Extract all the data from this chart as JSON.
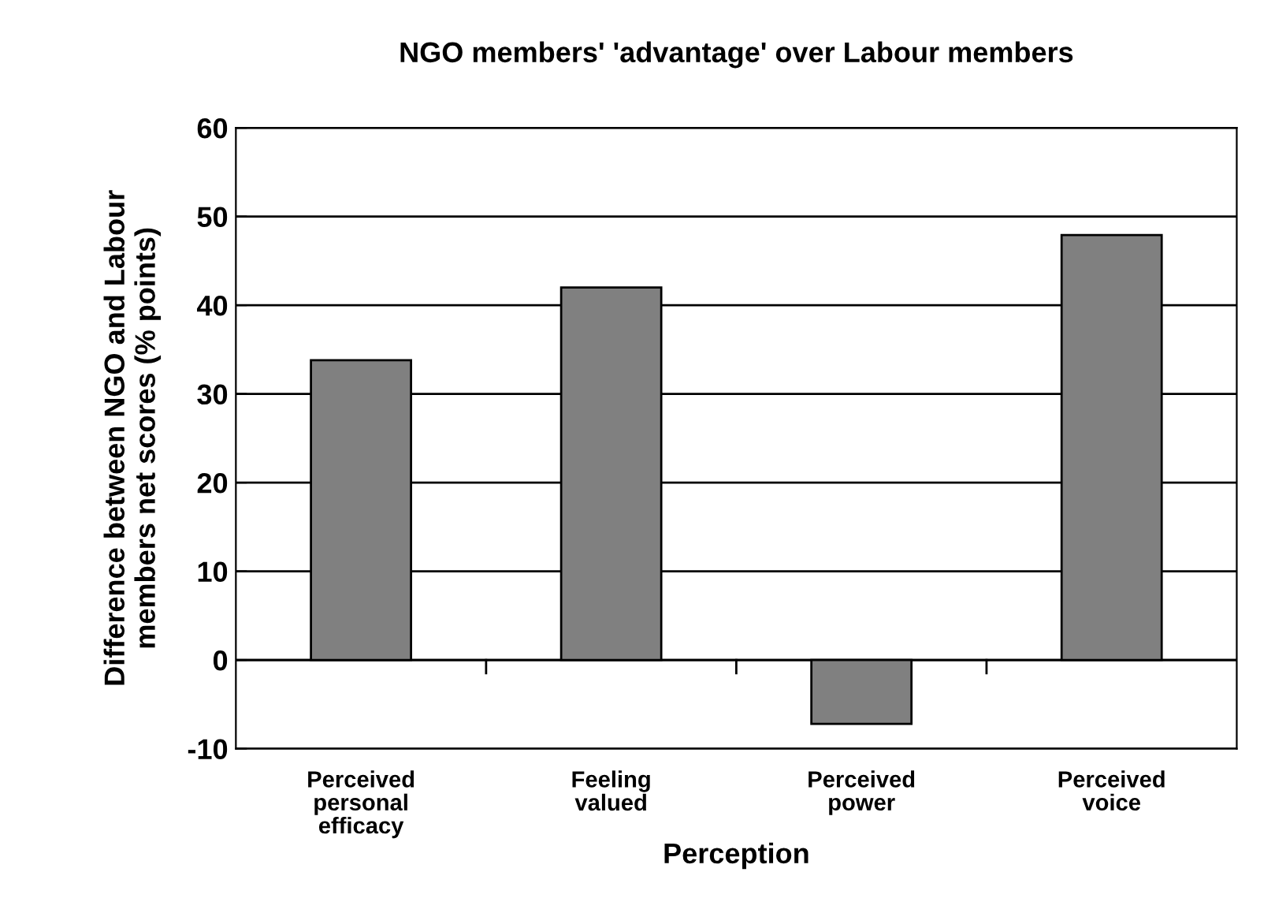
{
  "chart_data": {
    "type": "bar",
    "title": "NGO members' 'advantage' over Labour members",
    "xlabel": "Perception",
    "ylabel": "Difference between NGO and Labour\nmembers net scores (% points)",
    "categories": [
      "Perceived\npersonal\nefficacy",
      "Feeling\nvalued",
      "Perceived\npower",
      "Perceived\nvoice"
    ],
    "values": [
      33.8,
      42,
      -7.2,
      47.9
    ],
    "color": "#808080",
    "ylim": [
      -10,
      60
    ],
    "yticks": [
      -10,
      0,
      10,
      20,
      30,
      40,
      50,
      60
    ],
    "grid": "y"
  }
}
